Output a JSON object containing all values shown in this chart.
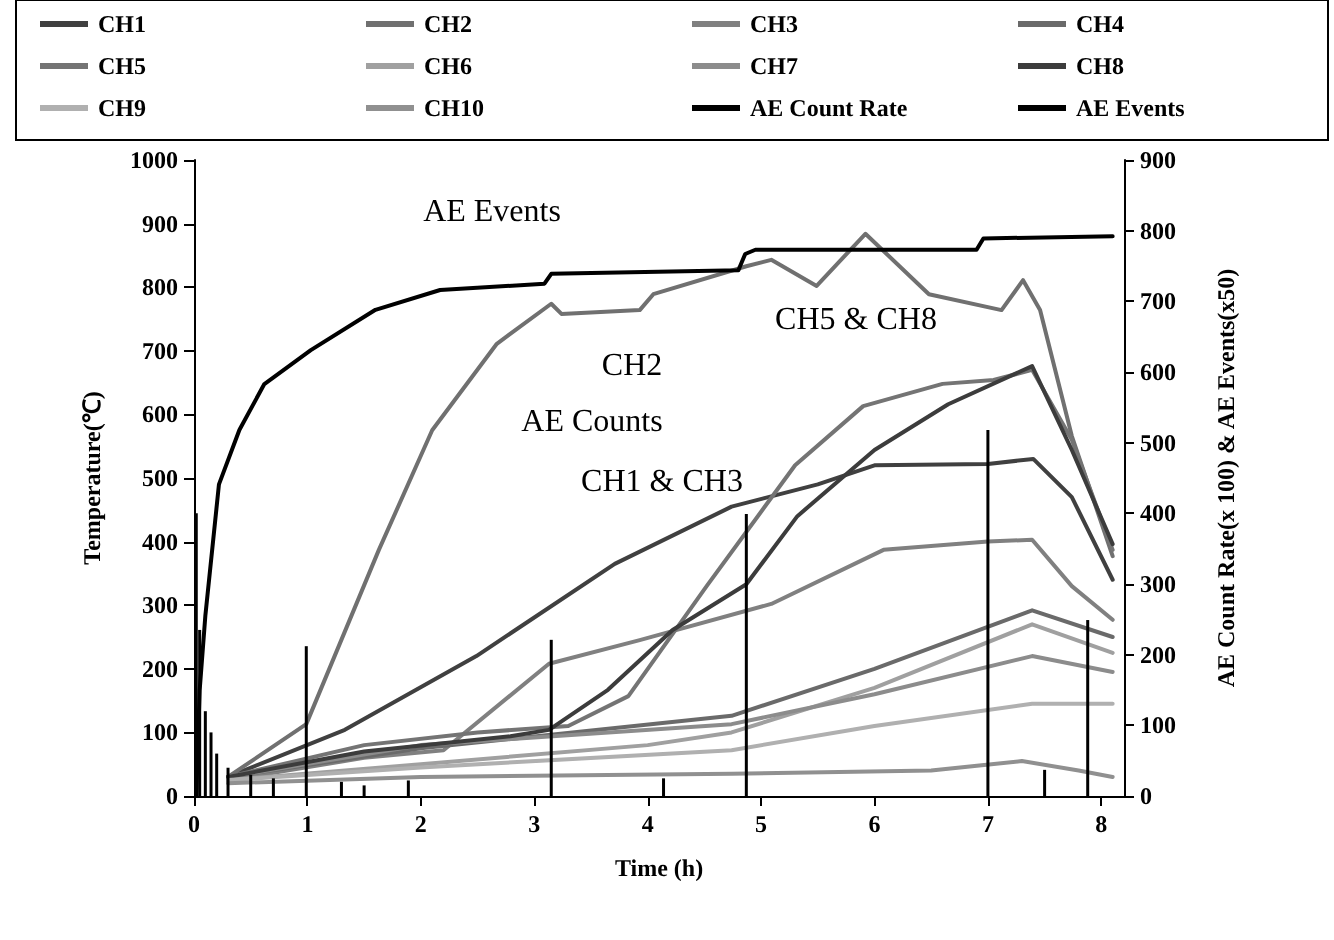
{
  "chart_data": {
    "type": "line",
    "xlabel": "Time (h)",
    "ylabel": "Temperature(℃)",
    "y2label": "AE Count Rate(x 100) & AE Events(x50)",
    "xlim": [
      0,
      8.2
    ],
    "xticks": [
      0,
      1,
      2,
      3,
      4,
      5,
      6,
      7,
      8
    ],
    "ylim": [
      0,
      1000
    ],
    "yticks": [
      0,
      100,
      200,
      300,
      400,
      500,
      600,
      700,
      800,
      900,
      1000
    ],
    "y2lim": [
      0,
      900
    ],
    "y2ticks": [
      0,
      100,
      200,
      300,
      400,
      500,
      600,
      700,
      800,
      900
    ],
    "grid": false,
    "legend": "top",
    "marker": "none",
    "line_style": "solid",
    "annotations": [
      "AE Events",
      "CH2",
      "AE Counts",
      "CH1 & CH3",
      "CH5 & CH8"
    ],
    "series": [
      {
        "name": "CH1",
        "color": "#404040",
        "x": [
          0.3,
          1.33,
          2.49,
          3.71,
          4.74,
          5.5,
          6.0,
          7.0,
          7.4,
          7.74,
          8.1
        ],
        "values": [
          30,
          104,
          220,
          365,
          455,
          490,
          520,
          522,
          530,
          470,
          340
        ]
      },
      {
        "name": "CH2",
        "color": "#707070",
        "x": [
          0.3,
          0.99,
          1.63,
          2.1,
          2.67,
          3.15,
          3.24,
          3.93,
          4.05,
          4.87,
          5.09,
          5.49,
          5.92,
          6.48,
          7.12,
          7.31,
          7.46,
          7.74,
          8.1
        ],
        "values": [
          30,
          113,
          387,
          575,
          711,
          774,
          758,
          764,
          789,
          833,
          843,
          802,
          884,
          789,
          764,
          811,
          764,
          566,
          377
        ]
      },
      {
        "name": "CH3",
        "color": "#808080",
        "x": [
          0.3,
          1.5,
          2.2,
          3.13,
          3.93,
          5.09,
          6.08,
          7.0,
          7.39,
          7.74,
          8.1
        ],
        "values": [
          25,
          60,
          72,
          208,
          245,
          302,
          387,
          400,
          403,
          330,
          277
        ]
      },
      {
        "name": "CH4",
        "color": "#6a6a6a",
        "x": [
          0.3,
          2,
          4.74,
          6,
          7.39,
          8.1
        ],
        "values": [
          30,
          75,
          126,
          200,
          292,
          250
        ]
      },
      {
        "name": "CH5",
        "color": "#747474",
        "x": [
          0.3,
          1.5,
          2.5,
          3.3,
          3.83,
          4.52,
          5.3,
          5.9,
          6.6,
          7.05,
          7.39,
          7.74,
          8.1
        ],
        "values": [
          30,
          80,
          100,
          110,
          157,
          330,
          520,
          613,
          648,
          654,
          670,
          560,
          387
        ]
      },
      {
        "name": "CH6",
        "color": "#a0a0a0",
        "x": [
          0.3,
          2,
          4,
          4.74,
          6,
          7.39,
          8.1
        ],
        "values": [
          25,
          50,
          80,
          100,
          170,
          270,
          225
        ]
      },
      {
        "name": "CH7",
        "color": "#8c8c8c",
        "x": [
          0.3,
          2,
          4.74,
          6,
          7.39,
          8.1
        ],
        "values": [
          30,
          80,
          113,
          160,
          220,
          195
        ]
      },
      {
        "name": "CH8",
        "color": "#3c3c3c",
        "x": [
          0.3,
          1.5,
          2.79,
          3.13,
          3.65,
          4.22,
          4.87,
          5.32,
          6.0,
          6.65,
          7.39,
          7.74,
          8.1
        ],
        "values": [
          30,
          70,
          94,
          104,
          167,
          261,
          333,
          440,
          544,
          616,
          676,
          544,
          396
        ]
      },
      {
        "name": "CH9",
        "color": "#b0b0b0",
        "x": [
          0.3,
          2,
          4.74,
          6,
          7.39,
          8.1
        ],
        "values": [
          25,
          45,
          72,
          110,
          145,
          145
        ]
      },
      {
        "name": "CH10",
        "color": "#909090",
        "x": [
          0.3,
          2,
          4.74,
          6.5,
          7.3,
          7.8,
          8.1
        ],
        "values": [
          20,
          30,
          35,
          40,
          55,
          40,
          30
        ]
      },
      {
        "name": "AE Count Rate",
        "type": "bar",
        "axis": "y2",
        "color": "#000000",
        "x": [
          0.02,
          0.05,
          0.1,
          0.15,
          0.2,
          0.3,
          0.5,
          0.7,
          0.99,
          1.3,
          1.5,
          1.89,
          3.15,
          4.14,
          4.87,
          7.0,
          7.5,
          7.88
        ],
        "values": [
          400,
          235,
          120,
          90,
          60,
          40,
          30,
          25,
          212,
          20,
          15,
          22,
          221,
          25,
          399,
          518,
          37,
          249
        ]
      },
      {
        "name": "AE Events",
        "axis": "y2",
        "color": "#000000",
        "x": [
          0.02,
          0.05,
          0.1,
          0.22,
          0.4,
          0.62,
          1.03,
          1.6,
          2.17,
          3.09,
          3.15,
          4.8,
          4.86,
          4.95,
          6.9,
          6.96,
          8.1
        ],
        "values": [
          0,
          150,
          255,
          441,
          518,
          583,
          631,
          688,
          716,
          725,
          739,
          744,
          767,
          773,
          773,
          789,
          792
        ]
      }
    ]
  }
}
